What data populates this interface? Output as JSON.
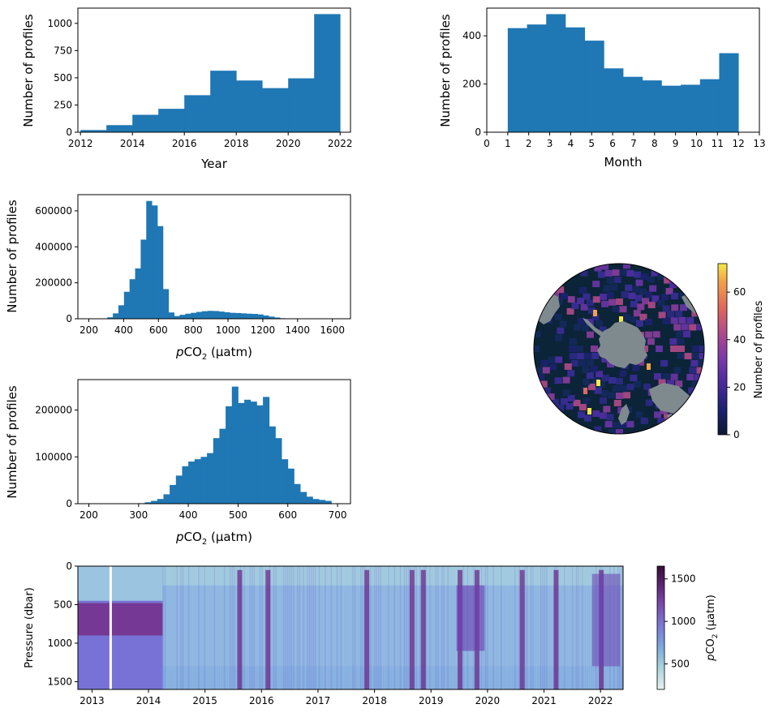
{
  "chart_data": [
    {
      "id": "year",
      "type": "bar",
      "xlabel": "Year",
      "ylabel": "Number of profiles",
      "xlim": [
        2011.9,
        2022.4
      ],
      "ylim": [
        0,
        1140
      ],
      "xticks": [
        2012,
        2014,
        2016,
        2018,
        2020,
        2022
      ],
      "yticks": [
        0,
        250,
        500,
        750,
        1000
      ],
      "bins": [
        {
          "x0": 2012.0,
          "x1": 2013.0,
          "v": 20
        },
        {
          "x0": 2013.0,
          "x1": 2014.0,
          "v": 65
        },
        {
          "x0": 2014.0,
          "x1": 2015.0,
          "v": 160
        },
        {
          "x0": 2015.0,
          "x1": 2016.0,
          "v": 215
        },
        {
          "x0": 2016.0,
          "x1": 2017.0,
          "v": 340
        },
        {
          "x0": 2017.0,
          "x1": 2018.0,
          "v": 565
        },
        {
          "x0": 2018.0,
          "x1": 2019.0,
          "v": 475
        },
        {
          "x0": 2019.0,
          "x1": 2020.0,
          "v": 405
        },
        {
          "x0": 2020.0,
          "x1": 2021.0,
          "v": 495
        },
        {
          "x0": 2021.0,
          "x1": 2022.0,
          "v": 1085
        }
      ]
    },
    {
      "id": "month",
      "type": "bar",
      "xlabel": "Month",
      "ylabel": "Number of profiles",
      "xlim": [
        0,
        13
      ],
      "ylim": [
        0,
        515
      ],
      "xticks": [
        0,
        1,
        2,
        3,
        4,
        5,
        6,
        7,
        8,
        9,
        10,
        11,
        12,
        13
      ],
      "yticks": [
        0,
        200,
        400
      ],
      "bins": [
        {
          "x0": 1.0,
          "x1": 1.917,
          "v": 432
        },
        {
          "x0": 1.917,
          "x1": 2.833,
          "v": 447
        },
        {
          "x0": 2.833,
          "x1": 3.75,
          "v": 490
        },
        {
          "x0": 3.75,
          "x1": 4.667,
          "v": 435
        },
        {
          "x0": 4.667,
          "x1": 5.583,
          "v": 380
        },
        {
          "x0": 5.583,
          "x1": 6.5,
          "v": 265
        },
        {
          "x0": 6.5,
          "x1": 7.417,
          "v": 230
        },
        {
          "x0": 7.417,
          "x1": 8.333,
          "v": 215
        },
        {
          "x0": 8.333,
          "x1": 9.25,
          "v": 193
        },
        {
          "x0": 9.25,
          "x1": 10.167,
          "v": 197
        },
        {
          "x0": 10.167,
          "x1": 11.083,
          "v": 220
        },
        {
          "x0": 11.083,
          "x1": 12.0,
          "v": 328
        }
      ]
    },
    {
      "id": "pco2a",
      "type": "bar",
      "xlabel_pre": "p",
      "xlabel_mid": "CO",
      "xlabel_sub": "2",
      "xlabel_post": " (μatm)",
      "ylabel": "Number of profiles",
      "xlim": [
        137,
        1704
      ],
      "ylim": [
        0,
        690000
      ],
      "xticks": [
        200,
        400,
        600,
        800,
        1000,
        1200,
        1400,
        1600
      ],
      "yticks": [
        0,
        200000,
        400000,
        600000
      ],
      "bin_start": 210,
      "bin_width": 32,
      "values": [
        0,
        0,
        1000,
        8000,
        30000,
        75000,
        150000,
        220000,
        280000,
        440000,
        655000,
        630000,
        515000,
        165000,
        35000,
        15000,
        22000,
        28000,
        33000,
        38000,
        42000,
        44000,
        43000,
        40000,
        36000,
        33000,
        32000,
        30000,
        28000,
        27000,
        24000,
        18000,
        12000,
        7000,
        3000,
        1000,
        0,
        0,
        0,
        0,
        0
      ]
    },
    {
      "id": "pco2b",
      "type": "bar",
      "xlabel_pre": "p",
      "xlabel_mid": "CO",
      "xlabel_sub": "2",
      "xlabel_post": " (μatm)",
      "ylabel": "Number of profiles",
      "xlim": [
        178,
        726
      ],
      "ylim": [
        0,
        265000
      ],
      "xticks": [
        200,
        300,
        400,
        500,
        600,
        700
      ],
      "yticks": [
        0,
        100000,
        200000
      ],
      "bin_start": 200,
      "bin_width": 12.5,
      "values": [
        0,
        0,
        0,
        0,
        0,
        0,
        0,
        0,
        1000,
        3000,
        6000,
        10000,
        20000,
        40000,
        60000,
        80000,
        90000,
        95000,
        100000,
        108000,
        140000,
        160000,
        208000,
        250000,
        215000,
        222000,
        218000,
        210000,
        228000,
        165000,
        140000,
        95000,
        75000,
        42000,
        25000,
        15000,
        10000,
        8000,
        6000,
        0
      ]
    },
    {
      "id": "map",
      "type": "heatmap",
      "colorbar_label": "Number of profiles",
      "colorbar_range": [
        0,
        72
      ],
      "colorbar_ticks": [
        0,
        20,
        40,
        60
      ]
    },
    {
      "id": "section",
      "type": "heatmap",
      "ylabel": "Pressure (dbar)",
      "xlim": [
        2012.75,
        2022.4
      ],
      "ylim": [
        1600,
        0
      ],
      "xticks": [
        2013,
        2014,
        2015,
        2016,
        2017,
        2018,
        2019,
        2020,
        2021,
        2022
      ],
      "yticks": [
        0,
        500,
        1000,
        1500
      ],
      "colorbar_label_pre": "p",
      "colorbar_label_mid": "CO",
      "colorbar_label_sub": "2",
      "colorbar_label_post": " (μatm)",
      "colorbar_range": [
        200,
        1650
      ],
      "colorbar_ticks": [
        500,
        1000,
        1500
      ],
      "gap_year": 2013.33,
      "high_pco2_events": [
        2015.6,
        2016.1,
        2017.85,
        2018.65,
        2018.85,
        2019.5,
        2019.8,
        2020.6,
        2021.2,
        2022.0
      ]
    }
  ]
}
